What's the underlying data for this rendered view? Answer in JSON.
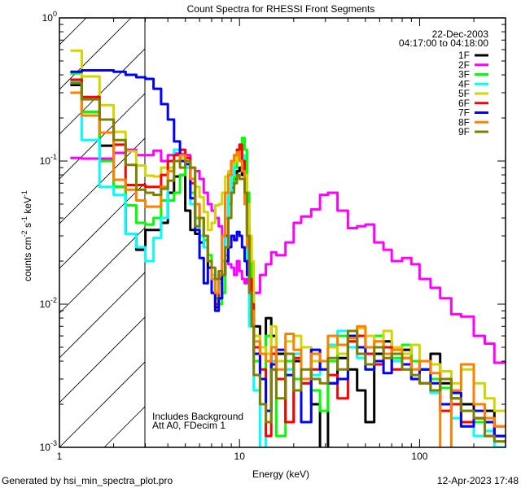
{
  "chart_data": {
    "type": "line",
    "step": true,
    "title": "Count Spectra for RHESSI Front Segments",
    "xlabel": "Energy (keV)",
    "ylabel": {
      "text": "counts cm",
      "exp1": "-2",
      "mid": " s",
      "exp2": "-1",
      "mid2": " keV",
      "exp3": "-1"
    },
    "xscale": "log",
    "yscale": "log",
    "xlim": [
      1,
      300
    ],
    "ylim": [
      0.001,
      1
    ],
    "x_ticks": [
      {
        "value": 1,
        "label": "1"
      },
      {
        "value": 10,
        "label": "10"
      },
      {
        "value": 100,
        "label": "100"
      }
    ],
    "y_ticks": [
      {
        "value": 0.001,
        "base": "10",
        "exp": "-3"
      },
      {
        "value": 0.01,
        "base": "10",
        "exp": "-2"
      },
      {
        "value": 0.1,
        "base": "10",
        "exp": "-1"
      },
      {
        "value": 1,
        "base": "10",
        "exp": "0"
      }
    ],
    "shaded_region": {
      "from": 1,
      "to": 3,
      "style": "hatched"
    },
    "date": "22-Dec-2003",
    "time_range": "04:17:00 to 04:18:00",
    "legend_position": "top-right",
    "annotations": [
      "Includes Background",
      "Att A0, FDecim 1"
    ],
    "energy_edges": [
      1.15,
      1.33,
      1.67,
      2.0,
      2.33,
      2.67,
      3.0,
      3.33,
      3.67,
      4.0,
      4.33,
      4.67,
      5.0,
      5.33,
      5.67,
      6.0,
      6.33,
      6.67,
      7.0,
      7.33,
      7.67,
      8.0,
      8.33,
      8.67,
      9.0,
      9.33,
      9.67,
      10.0,
      10.33,
      10.67,
      11.0,
      11.33,
      11.67,
      12,
      13,
      14,
      15,
      16,
      18,
      20,
      22,
      25,
      28,
      31,
      35,
      40,
      45,
      50,
      56,
      63,
      70,
      80,
      90,
      100,
      115,
      130,
      150,
      170,
      200,
      230,
      260,
      300
    ],
    "series": [
      {
        "name": "1F",
        "color": "#000000",
        "values": [
          0.34,
          0.22,
          0.128,
          0.066,
          0.031,
          0.024,
          0.033,
          0.033,
          0.037,
          0.06,
          0.078,
          0.08,
          0.045,
          0.033,
          0.031,
          0.027,
          0.025,
          0.018,
          0.012,
          0.0095,
          0.011,
          0.016,
          0.03,
          0.05,
          0.065,
          0.075,
          0.085,
          0.09,
          0.08,
          0.06,
          0.035,
          0.02,
          0.012,
          0.007,
          0.0045,
          0.008,
          0.006,
          0.0045,
          0.0015,
          0.004,
          0.0028,
          0.002,
          0.0009,
          0.0028,
          0.0042,
          0.0035,
          0.0025,
          0.0015,
          0.0045,
          0.0055,
          0.005,
          0.0048,
          0.004,
          0.0035,
          0.0045,
          0.0028,
          0.0022,
          0.002,
          0.0016,
          0.0018,
          0.0012
        ]
      },
      {
        "name": "2F",
        "color": "#ff00ff",
        "values": [
          0.105,
          0.104,
          0.104,
          0.114,
          0.12,
          0.11,
          0.11,
          0.118,
          0.1,
          0.11,
          0.113,
          0.112,
          0.11,
          0.09,
          0.085,
          0.075,
          0.06,
          0.05,
          0.045,
          0.04,
          0.035,
          0.03,
          0.022,
          0.019,
          0.018,
          0.016,
          0.02,
          0.017,
          0.015,
          0.014,
          0.015,
          0.013,
          0.013,
          0.012,
          0.016,
          0.019,
          0.023,
          0.022,
          0.027,
          0.037,
          0.041,
          0.046,
          0.058,
          0.06,
          0.045,
          0.034,
          0.035,
          0.036,
          0.027,
          0.024,
          0.02,
          0.021,
          0.019,
          0.015,
          0.013,
          0.011,
          0.0085,
          0.0082,
          0.006,
          0.0053,
          0.0039
        ]
      },
      {
        "name": "3F",
        "color": "#00ff00",
        "values": [
          0.41,
          0.22,
          0.1,
          0.066,
          0.049,
          0.037,
          0.036,
          0.04,
          0.053,
          0.053,
          0.06,
          0.08,
          0.09,
          0.06,
          0.04,
          0.03,
          0.028,
          0.022,
          0.015,
          0.011,
          0.01,
          0.012,
          0.025,
          0.05,
          0.07,
          0.09,
          0.11,
          0.13,
          0.145,
          0.12,
          0.06,
          0.025,
          0.012,
          0.004,
          0.002,
          0.006,
          0.0035,
          0.0012,
          0.004,
          0.003,
          0.005,
          0.0025,
          0.0018,
          0.004,
          0.006,
          0.005,
          0.0045,
          0.0035,
          0.006,
          0.005,
          0.0042,
          0.0052,
          0.004,
          0.0035,
          0.003,
          0.0026,
          0.0022,
          0.0018,
          0.0015,
          0.0013,
          0.0011
        ]
      },
      {
        "name": "4F",
        "color": "#00ffff",
        "values": [
          0.36,
          0.14,
          0.066,
          0.058,
          0.031,
          0.025,
          0.02,
          0.029,
          0.04,
          0.1,
          0.12,
          0.11,
          0.09,
          0.05,
          0.035,
          0.03,
          0.025,
          0.02,
          0.016,
          0.012,
          0.014,
          0.02,
          0.04,
          0.06,
          0.08,
          0.1,
          0.12,
          0.13,
          0.11,
          0.06,
          0.02,
          0.007,
          0.012,
          0.0025,
          0.0008,
          0.0018,
          0.004,
          0.003,
          0.0035,
          0.0045,
          0.0028,
          0.0032,
          0.004,
          0.0052,
          0.0065,
          0.005,
          0.0042,
          0.005,
          0.0038,
          0.0045,
          0.004,
          0.0035,
          0.003,
          0.0028,
          0.0024,
          0.002,
          0.0016,
          0.0014,
          0.0012,
          0.0013,
          0.001
        ]
      },
      {
        "name": "5F",
        "color": "#d4d400",
        "values": [
          0.59,
          0.39,
          0.246,
          0.16,
          0.117,
          0.093,
          0.079,
          0.078,
          0.09,
          0.09,
          0.1,
          0.105,
          0.1,
          0.089,
          0.066,
          0.056,
          0.044,
          0.033,
          0.037,
          0.049,
          0.05,
          0.06,
          0.078,
          0.085,
          0.095,
          0.1,
          0.11,
          0.12,
          0.1,
          0.08,
          0.05,
          0.03,
          0.02,
          0.006,
          0.005,
          0.0045,
          0.007,
          0.004,
          0.0055,
          0.006,
          0.005,
          0.004,
          0.0035,
          0.005,
          0.0045,
          0.0058,
          0.0068,
          0.006,
          0.0055,
          0.0065,
          0.005,
          0.0045,
          0.0052,
          0.004,
          0.0038,
          0.0034,
          0.0028,
          0.0035,
          0.0028,
          0.0022,
          0.0018
        ]
      },
      {
        "name": "6F",
        "color": "#ff0000",
        "values": [
          0.37,
          0.28,
          0.195,
          0.13,
          0.068,
          0.068,
          0.066,
          0.066,
          0.08,
          0.1,
          0.11,
          0.12,
          0.105,
          0.07,
          0.05,
          0.04,
          0.03,
          0.02,
          0.012,
          0.01,
          0.015,
          0.03,
          0.06,
          0.08,
          0.1,
          0.11,
          0.12,
          0.13,
          0.1,
          0.06,
          0.03,
          0.015,
          0.01,
          0.005,
          0.0035,
          0.0012,
          0.0045,
          0.003,
          0.0015,
          0.0042,
          0.0028,
          0.0035,
          0.004,
          0.0032,
          0.0022,
          0.0055,
          0.006,
          0.0045,
          0.0038,
          0.005,
          0.0035,
          0.0042,
          0.003,
          0.0028,
          0.0025,
          0.0018,
          0.002,
          0.0015,
          0.0016,
          0.0012,
          0.0014
        ]
      },
      {
        "name": "7F",
        "color": "#0000ff",
        "values": [
          0.42,
          0.43,
          0.43,
          0.42,
          0.4,
          0.385,
          0.375,
          0.32,
          0.25,
          0.195,
          0.137,
          0.1,
          0.095,
          0.055,
          0.033,
          0.021,
          0.014,
          0.018,
          0.012,
          0.009,
          0.011,
          0.016,
          0.02,
          0.025,
          0.03,
          0.028,
          0.032,
          0.03,
          0.025,
          0.02,
          0.016,
          0.012,
          0.008,
          0.0045,
          0.003,
          0.0018,
          0.0038,
          0.0048,
          0.0032,
          0.0025,
          0.0015,
          0.0048,
          0.0035,
          0.0028,
          0.003,
          0.006,
          0.005,
          0.0035,
          0.004,
          0.0033,
          0.0045,
          0.0038,
          0.003,
          0.0035,
          0.0028,
          0.002,
          0.0024,
          0.0014,
          0.0018,
          0.0015,
          0.0012
        ]
      },
      {
        "name": "8F",
        "color": "#ff8000",
        "values": [
          0.3,
          0.208,
          0.158,
          0.074,
          0.063,
          0.053,
          0.048,
          0.048,
          0.066,
          0.085,
          0.1,
          0.11,
          0.1,
          0.075,
          0.05,
          0.04,
          0.03,
          0.02,
          0.015,
          0.012,
          0.016,
          0.03,
          0.06,
          0.08,
          0.1,
          0.11,
          0.115,
          0.1,
          0.085,
          0.05,
          0.025,
          0.012,
          0.009,
          0.0055,
          0.0045,
          0.004,
          0.005,
          0.0035,
          0.0062,
          0.0048,
          0.003,
          0.0045,
          0.004,
          0.006,
          0.0052,
          0.0058,
          0.007,
          0.005,
          0.0055,
          0.0045,
          0.0048,
          0.0042,
          0.0035,
          0.004,
          0.0033,
          0.0008,
          0.0025,
          0.0038,
          0.002,
          0.0016,
          0.0014
        ]
      },
      {
        "name": "9F",
        "color": "#808000",
        "values": [
          0.35,
          0.27,
          0.195,
          0.14,
          0.094,
          0.063,
          0.06,
          0.058,
          0.064,
          0.073,
          0.1,
          0.09,
          0.1,
          0.09,
          0.035,
          0.04,
          0.03,
          0.02,
          0.018,
          0.015,
          0.017,
          0.016,
          0.025,
          0.04,
          0.06,
          0.07,
          0.08,
          0.075,
          0.075,
          0.06,
          0.03,
          0.012,
          0.007,
          0.0032,
          0.002,
          0.0015,
          0.0035,
          0.0022,
          0.0045,
          0.0025,
          0.0035,
          0.003,
          0.0028,
          0.0042,
          0.0035,
          0.0065,
          0.0045,
          0.0038,
          0.005,
          0.0042,
          0.0045,
          0.0035,
          0.0032,
          0.0028,
          0.0025,
          0.003,
          0.0022,
          0.0018,
          0.0016,
          0.0012,
          0.0011
        ]
      }
    ]
  },
  "footer": {
    "generated_by": "Generated by hsi_min_spectra_plot.pro",
    "timestamp": "12-Apr-2023 17:48"
  }
}
